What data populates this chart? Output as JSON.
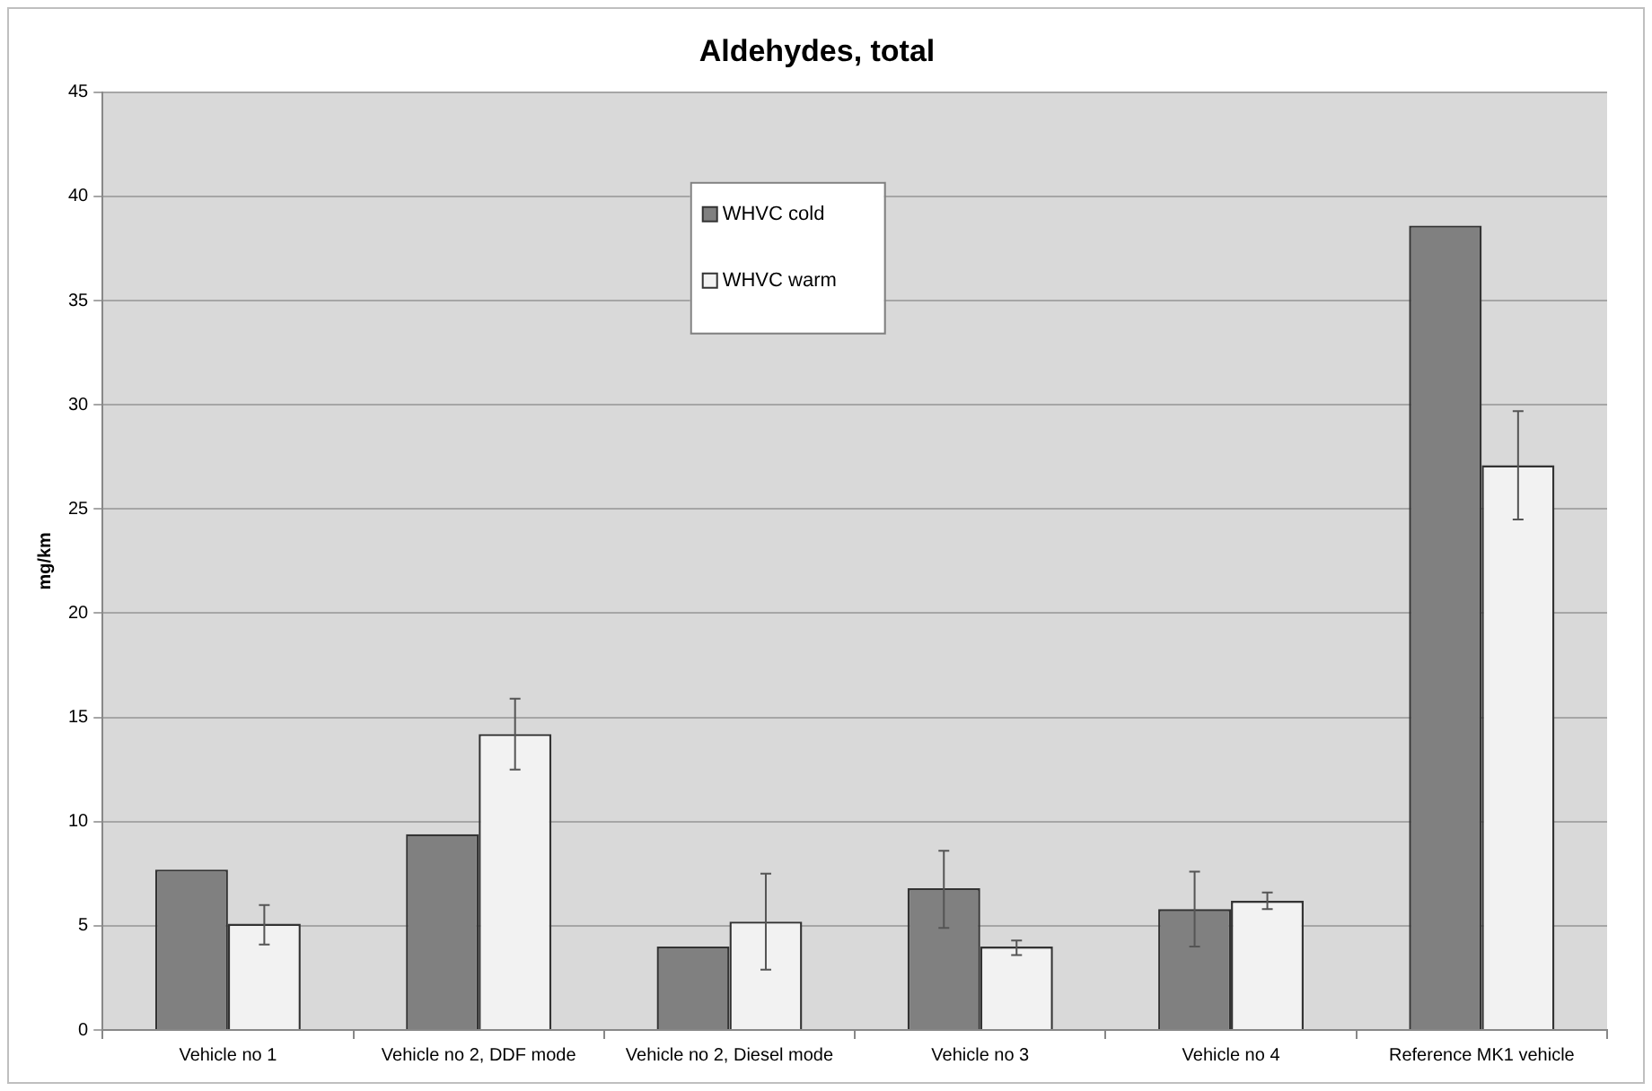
{
  "chart_data": {
    "type": "bar",
    "title": "Aldehydes, total",
    "ylabel": "mg/km",
    "categories": [
      "Vehicle no 1",
      "Vehicle no 2, DDF mode",
      "Vehicle no 2, Diesel mode",
      "Vehicle no 3",
      "Vehicle no 4",
      "Reference MK1 vehicle"
    ],
    "series": [
      {
        "name": "WHVC cold",
        "color": "#808080",
        "values": [
          7.7,
          9.4,
          4.0,
          6.8,
          5.8,
          38.6
        ],
        "errors": [
          null,
          null,
          null,
          [
            4.9,
            8.6
          ],
          [
            4.0,
            7.6
          ],
          null
        ]
      },
      {
        "name": "WHVC warm",
        "color": "#f2f2f2",
        "values": [
          5.1,
          14.2,
          5.2,
          4.0,
          6.2,
          27.1
        ],
        "errors": [
          [
            4.1,
            6.0
          ],
          [
            12.5,
            15.9
          ],
          [
            2.9,
            7.5
          ],
          [
            3.6,
            4.3
          ],
          [
            5.8,
            6.6
          ],
          [
            24.5,
            29.7
          ]
        ]
      }
    ],
    "ylim": [
      0,
      45
    ],
    "yticks": [
      0,
      5,
      10,
      15,
      20,
      25,
      30,
      35,
      40,
      45
    ],
    "grid": "y",
    "legend": "top"
  }
}
